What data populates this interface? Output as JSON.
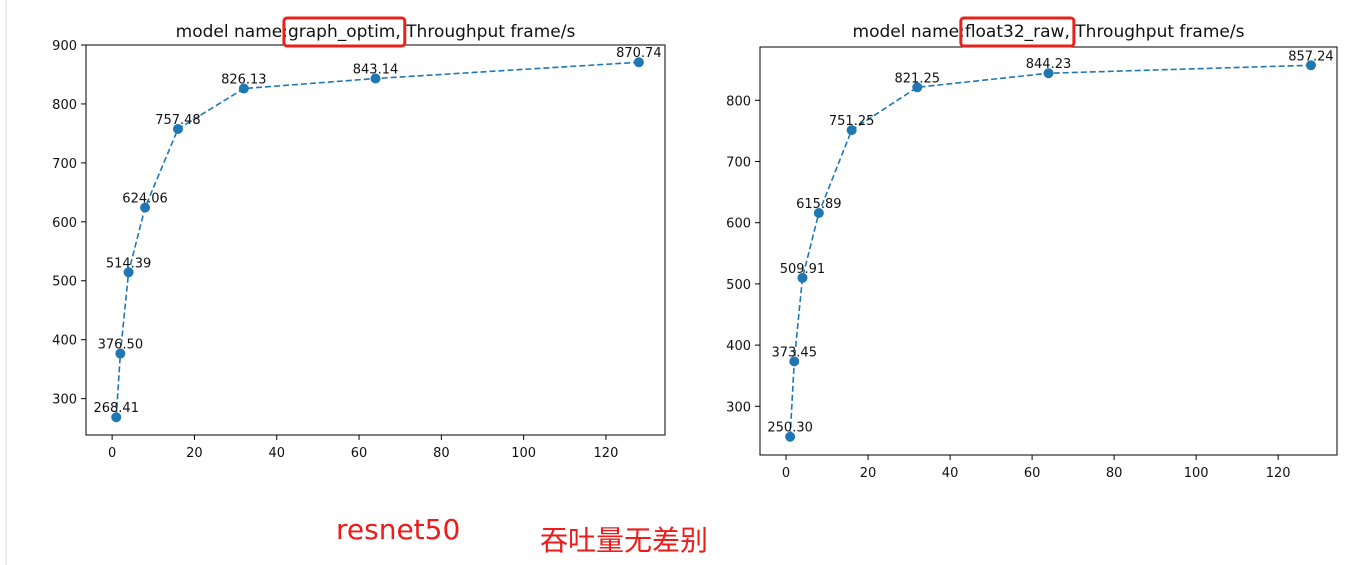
{
  "colors": {
    "series": "#1f77b4",
    "highlight_box": "#e8221b",
    "caption": "#ee1b1b"
  },
  "captions": {
    "model": "resnet50",
    "conclusion": "吞吐量无差别"
  },
  "chart_data": [
    {
      "type": "line",
      "title": {
        "prefix": "model name:",
        "highlight": "graph_optim,",
        "suffix": " Throughput frame/s"
      },
      "x": [
        1,
        2,
        4,
        8,
        16,
        32,
        64,
        128
      ],
      "series": [
        {
          "values": [
            268.41,
            376.5,
            514.39,
            624.06,
            757.48,
            826.13,
            843.14,
            870.74
          ]
        }
      ],
      "data_labels": [
        "268.41",
        "376.50",
        "514.39",
        "624.06",
        "757.48",
        "826.13",
        "843.14",
        "870.74"
      ],
      "xlim": [
        -6.35,
        134.35
      ],
      "ylim": [
        238.28,
        900
      ],
      "xticks": [
        0,
        20,
        40,
        60,
        80,
        100,
        120
      ],
      "yticks": [
        300,
        400,
        500,
        600,
        700,
        800,
        900
      ],
      "line_style": "dashed",
      "marker": "circle",
      "grid": false,
      "legend": "none"
    },
    {
      "type": "line",
      "title": {
        "prefix": "model name:",
        "highlight": "float32_raw,",
        "suffix": " Throughput frame/s"
      },
      "x": [
        1,
        2,
        4,
        8,
        16,
        32,
        64,
        128
      ],
      "series": [
        {
          "values": [
            250.3,
            373.45,
            509.91,
            615.89,
            751.25,
            821.25,
            844.23,
            857.24
          ]
        }
      ],
      "data_labels": [
        "250.30",
        "373.45",
        "509.91",
        "615.89",
        "751.25",
        "821.25",
        "844.23",
        "857.24"
      ],
      "xlim": [
        -6.35,
        134.35
      ],
      "ylim": [
        220.45,
        887.08
      ],
      "xticks": [
        0,
        20,
        40,
        60,
        80,
        100,
        120
      ],
      "yticks": [
        300,
        400,
        500,
        600,
        700,
        800
      ],
      "line_style": "dashed",
      "marker": "circle",
      "grid": false,
      "legend": "none"
    }
  ]
}
